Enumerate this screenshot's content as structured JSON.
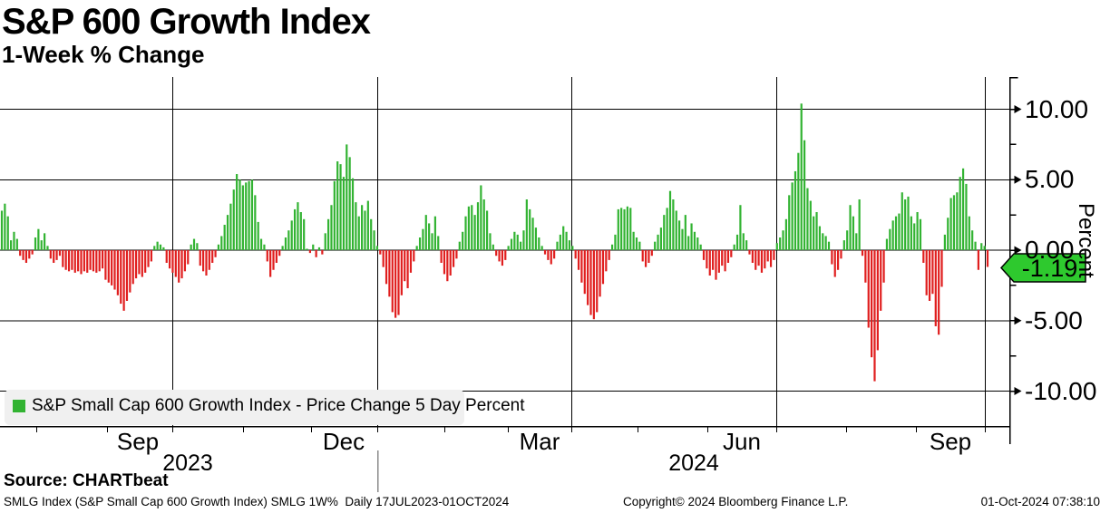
{
  "title": "S&P 600 Growth Index",
  "subtitle": "1-Week % Change",
  "legend": {
    "label": "S&P Small Cap 600 Growth Index - Price Change 5 Day Percent"
  },
  "y_axis": {
    "title": "Percent",
    "tick_labels": [
      "10.00",
      "5.00",
      "0.00",
      "-5.00",
      "-10.00"
    ],
    "tick_values": [
      10,
      5,
      0,
      -5,
      -10
    ],
    "minor_tick_values": [
      7.5,
      2.5,
      -2.5,
      -7.5
    ]
  },
  "x_axis": {
    "month_labels": [
      "Sep",
      "Dec",
      "Mar",
      "Jun",
      "Sep"
    ],
    "year_labels": [
      "2023",
      "2024"
    ]
  },
  "last_value_tag": "-1.19",
  "footer": {
    "source": "Source: CHARTbeat",
    "description": "SMLG Index (S&P Small Cap 600 Growth Index) SMLG 1W%  Daily 17JUL2023-01OCT2024",
    "copyright": "Copyright© 2024 Bloomberg Finance L.P.",
    "timestamp": "01-Oct-2024 07:38:10"
  },
  "colors": {
    "positive": "#32b332",
    "negative": "#e01e1e",
    "tag_fill": "#2ec92e",
    "legend_bg": "#f0f0f0",
    "grid": "#000000",
    "year_divider": "#8a8a8a"
  },
  "chart_data": {
    "type": "bar",
    "title": "S&P 600 Growth Index — 1-Week % Change",
    "ylabel": "Percent",
    "ylim": [
      -12.4,
      12.4
    ],
    "x_range": "17JUL2023-01OCT2024",
    "frequency": "Daily",
    "last_value": -1.19,
    "gridline_dates": [
      "Oct 2023",
      "Jan 2024",
      "Apr 2024",
      "Jul 2024",
      "Oct 2024"
    ],
    "legend_position": "bottom-left",
    "series": [
      {
        "name": "S&P Small Cap 600 Growth Index - Price Change 5 Day Percent",
        "values": [
          2.8,
          3.3,
          2.4,
          0.7,
          1.3,
          0.8,
          -0.4,
          -0.7,
          -0.9,
          -0.6,
          -0.3,
          0.9,
          1.5,
          0.7,
          1.2,
          0.3,
          -0.6,
          -0.9,
          -0.7,
          -0.4,
          -1.2,
          -1.4,
          -1.5,
          -1.4,
          -1.6,
          -1.5,
          -1.7,
          -1.5,
          -1.6,
          -1.4,
          -1.5,
          -1.6,
          -1.5,
          -1.3,
          -2.1,
          -2.3,
          -2.5,
          -2.8,
          -3.2,
          -3.8,
          -4.3,
          -3.6,
          -3.0,
          -2.4,
          -2.0,
          -1.7,
          -1.9,
          -1.6,
          -1.2,
          -0.8,
          0.3,
          0.6,
          0.4,
          0.2,
          -0.9,
          -1.3,
          -1.6,
          -1.9,
          -2.3,
          -2.0,
          -1.5,
          -1.0,
          0.4,
          0.8,
          0.5,
          -1.1,
          -1.5,
          -1.8,
          -1.4,
          -0.9,
          -0.5,
          0.4,
          1.0,
          1.8,
          2.5,
          3.3,
          4.3,
          5.4,
          5.0,
          4.6,
          4.8,
          4.9,
          5.0,
          3.9,
          2.0,
          0.8,
          0.4,
          -0.8,
          -1.9,
          -1.4,
          -0.9,
          -0.4,
          0.3,
          0.9,
          1.4,
          2.1,
          2.9,
          3.4,
          2.7,
          2.2,
          0.1,
          -0.2,
          0.4,
          -0.5,
          0.2,
          -0.3,
          1.2,
          2.2,
          3.2,
          4.9,
          6.3,
          6.1,
          5.2,
          7.5,
          6.6,
          5.1,
          3.4,
          2.4,
          3.2,
          2.8,
          3.5,
          2.2,
          1.4,
          0.3,
          -0.3,
          -1.2,
          -2.4,
          -3.3,
          -4.4,
          -4.8,
          -4.6,
          -3.2,
          -2.2,
          -2.7,
          -1.6,
          -0.8,
          0.3,
          0.9,
          1.5,
          2.5,
          1.9,
          1.2,
          2.4,
          1.0,
          -0.9,
          -1.7,
          -2.2,
          -1.8,
          -1.2,
          -0.6,
          0.6,
          1.3,
          2.4,
          3.1,
          3.2,
          2.5,
          3.4,
          4.6,
          3.6,
          2.8,
          1.2,
          0.4,
          -0.4,
          -0.8,
          -1.1,
          -0.7,
          0.3,
          0.8,
          1.3,
          1.1,
          0.6,
          1.4,
          3.6,
          2.9,
          2.3,
          1.6,
          0.9,
          0.3,
          -0.3,
          -0.7,
          -1.0,
          -0.6,
          0.6,
          1.1,
          1.7,
          1.3,
          0.7,
          0.3,
          -0.6,
          -1.4,
          -2.3,
          -3.1,
          -3.9,
          -4.6,
          -4.9,
          -4.4,
          -3.3,
          -2.4,
          -1.5,
          -0.7,
          0.4,
          1.1,
          2.9,
          3.0,
          2.9,
          3.1,
          3.0,
          1.3,
          0.9,
          0.6,
          -0.8,
          -1.2,
          -0.9,
          -0.4,
          0.6,
          1.1,
          1.6,
          2.5,
          3.0,
          4.2,
          3.6,
          2.8,
          2.1,
          1.5,
          2.5,
          1.0,
          1.9,
          1.3,
          0.9,
          0.4,
          -0.7,
          -1.3,
          -1.8,
          -1.4,
          -2.1,
          -1.6,
          -1.1,
          -1.5,
          -0.9,
          -0.5,
          0.4,
          1.1,
          3.2,
          1.2,
          0.7,
          -0.3,
          -0.9,
          -1.4,
          -1.1,
          -1.6,
          -1.3,
          -0.8,
          -1.2,
          -0.7,
          0.5,
          0.9,
          1.4,
          2.2,
          3.9,
          4.8,
          5.6,
          6.9,
          10.4,
          7.8,
          4.4,
          3.5,
          2.4,
          2.7,
          1.7,
          1.2,
          1.0,
          0.6,
          -1.0,
          -1.9,
          -1.4,
          -0.6,
          0.7,
          1.4,
          3.2,
          2.4,
          1.2,
          3.6,
          -0.4,
          -2.3,
          -5.5,
          -7.6,
          -9.3,
          -7.1,
          -4.3,
          -2.3,
          0.8,
          1.5,
          2.1,
          2.4,
          2.6,
          4.1,
          3.6,
          3.8,
          2.4,
          1.9,
          2.7,
          2.2,
          -0.9,
          -3.2,
          -3.6,
          -3.1,
          -5.4,
          -6.0,
          -2.6,
          1.1,
          2.3,
          3.7,
          3.9,
          4.1,
          5.2,
          5.8,
          4.7,
          2.4,
          1.4,
          0.6,
          -1.4,
          0.5,
          0.3,
          -1.19
        ]
      }
    ]
  }
}
